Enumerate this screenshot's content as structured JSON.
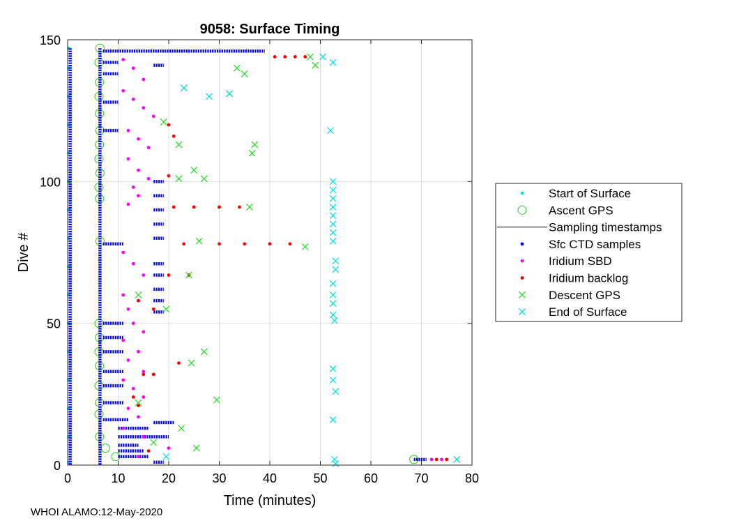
{
  "chart_data": {
    "type": "scatter",
    "title": "9058: Surface Timing",
    "xlabel": "Time (minutes)",
    "ylabel": "Dive #",
    "xlim": [
      0,
      80
    ],
    "ylim": [
      0,
      150
    ],
    "xticks": [
      "0",
      "10",
      "20",
      "30",
      "40",
      "50",
      "60",
      "70",
      "80"
    ],
    "yticks": [
      "0",
      "50",
      "100",
      "150"
    ],
    "grid": true,
    "legend_position": "right",
    "legend": [
      {
        "label": "Start of Surface",
        "marker": "dot",
        "color": "#00e5e5"
      },
      {
        "label": "Ascent GPS",
        "marker": "circle",
        "color": "#22cc22"
      },
      {
        "label": "Sampling timestamps",
        "marker": "line",
        "color": "#000000"
      },
      {
        "label": "Sfc CTD samples",
        "marker": "dot",
        "color": "#0000ff"
      },
      {
        "label": "Iridium SBD",
        "marker": "dot",
        "color": "#ff00ff"
      },
      {
        "label": "Iridium backlog",
        "marker": "dot",
        "color": "#ff0000"
      },
      {
        "label": "Descent GPS",
        "marker": "x",
        "color": "#22dd22"
      },
      {
        "label": "End of Surface",
        "marker": "x",
        "color": "#00e0e0"
      }
    ],
    "series": [
      {
        "name": "Start of Surface",
        "points": [
          [
            0.2,
            1
          ],
          [
            0.2,
            10
          ],
          [
            0.2,
            20
          ],
          [
            0.2,
            30
          ],
          [
            0.2,
            40
          ],
          [
            0.2,
            50
          ],
          [
            0.2,
            60
          ],
          [
            0.2,
            70
          ],
          [
            0.2,
            80
          ],
          [
            0.2,
            90
          ],
          [
            0.2,
            100
          ],
          [
            0.2,
            110
          ],
          [
            0.2,
            120
          ],
          [
            0.2,
            130
          ],
          [
            0.2,
            140
          ],
          [
            0.2,
            147
          ]
        ]
      },
      {
        "name": "Ascent GPS",
        "points": [
          [
            6.4,
            147
          ],
          [
            6.2,
            142
          ],
          [
            6.3,
            135
          ],
          [
            6.2,
            130
          ],
          [
            6.3,
            124
          ],
          [
            6.4,
            118
          ],
          [
            6.3,
            113
          ],
          [
            6.2,
            108
          ],
          [
            6.4,
            103
          ],
          [
            6.2,
            98
          ],
          [
            6.3,
            94
          ],
          [
            6.4,
            79
          ],
          [
            6.2,
            50
          ],
          [
            6.3,
            45
          ],
          [
            6.2,
            40
          ],
          [
            6.3,
            35
          ],
          [
            6.2,
            28
          ],
          [
            6.3,
            22
          ],
          [
            6.2,
            18
          ],
          [
            6.3,
            10
          ],
          [
            7.5,
            6
          ],
          [
            9.5,
            3
          ],
          [
            68.5,
            2
          ]
        ]
      },
      {
        "name": "Sfc CTD samples",
        "segments": [
          [
            0.5,
            147,
            0.5,
            0
          ],
          [
            6.4,
            147,
            6.4,
            0
          ],
          [
            7,
            146,
            39,
            146
          ],
          [
            7,
            142,
            10,
            142
          ],
          [
            17,
            141,
            19,
            141
          ],
          [
            7,
            138,
            10,
            138
          ],
          [
            7,
            128,
            10,
            128
          ],
          [
            7,
            118,
            10,
            118
          ],
          [
            17,
            100,
            19,
            100
          ],
          [
            17,
            95,
            19,
            95
          ],
          [
            17,
            90,
            19,
            90
          ],
          [
            17,
            85,
            19,
            85
          ],
          [
            17,
            80,
            19,
            80
          ],
          [
            7,
            78,
            11,
            78
          ],
          [
            17,
            71,
            19,
            71
          ],
          [
            17,
            67,
            19,
            67
          ],
          [
            17,
            62,
            19,
            62
          ],
          [
            17,
            58,
            19,
            58
          ],
          [
            17,
            54,
            19,
            54
          ],
          [
            7,
            50,
            11,
            50
          ],
          [
            7,
            45,
            11,
            45
          ],
          [
            7,
            40,
            11,
            40
          ],
          [
            7,
            33,
            11,
            33
          ],
          [
            7,
            28,
            11,
            28
          ],
          [
            7,
            22,
            11,
            22
          ],
          [
            7,
            16,
            12,
            16
          ],
          [
            17,
            15,
            21,
            15
          ],
          [
            10,
            13,
            16,
            13
          ],
          [
            10,
            10,
            20,
            10
          ],
          [
            10,
            7,
            14,
            7
          ],
          [
            10,
            5,
            15,
            5
          ],
          [
            10,
            3,
            16,
            3
          ],
          [
            17,
            1,
            19,
            1
          ],
          [
            68.5,
            2,
            71,
            2
          ]
        ]
      },
      {
        "name": "Iridium SBD",
        "points": [
          [
            11,
            143
          ],
          [
            13,
            140
          ],
          [
            15,
            136
          ],
          [
            11,
            132
          ],
          [
            13,
            129
          ],
          [
            15,
            126
          ],
          [
            17,
            123
          ],
          [
            12,
            118
          ],
          [
            14,
            115
          ],
          [
            16,
            112
          ],
          [
            12,
            108
          ],
          [
            14,
            104
          ],
          [
            16,
            101
          ],
          [
            13,
            98
          ],
          [
            14,
            95
          ],
          [
            12,
            92
          ],
          [
            11,
            75
          ],
          [
            13,
            71
          ],
          [
            15,
            67
          ],
          [
            11,
            60
          ],
          [
            14,
            58
          ],
          [
            12,
            55
          ],
          [
            13,
            50
          ],
          [
            15,
            47
          ],
          [
            11,
            44
          ],
          [
            14,
            40
          ],
          [
            12,
            37
          ],
          [
            15,
            33
          ],
          [
            11,
            30
          ],
          [
            13,
            27
          ],
          [
            15,
            24
          ],
          [
            12,
            20
          ],
          [
            14,
            17
          ],
          [
            11,
            13
          ],
          [
            15,
            10
          ],
          [
            20,
            6
          ],
          [
            14,
            3
          ],
          [
            72,
            2
          ],
          [
            74,
            2
          ]
        ]
      },
      {
        "name": "Iridium backlog",
        "points": [
          [
            41,
            144
          ],
          [
            43,
            144
          ],
          [
            45,
            144
          ],
          [
            47,
            144
          ],
          [
            20,
            120
          ],
          [
            21,
            116
          ],
          [
            20,
            102
          ],
          [
            21,
            91
          ],
          [
            25,
            91
          ],
          [
            30,
            91
          ],
          [
            34,
            91
          ],
          [
            23,
            78
          ],
          [
            30,
            78
          ],
          [
            35,
            78
          ],
          [
            40,
            78
          ],
          [
            44,
            78
          ],
          [
            20,
            67
          ],
          [
            24,
            67
          ],
          [
            14,
            58
          ],
          [
            17,
            55
          ],
          [
            22,
            36
          ],
          [
            15,
            32
          ],
          [
            17,
            32
          ],
          [
            13,
            24
          ],
          [
            14,
            21
          ],
          [
            16,
            5
          ],
          [
            73,
            2
          ],
          [
            75,
            2
          ]
        ]
      },
      {
        "name": "Descent GPS",
        "points": [
          [
            48,
            144
          ],
          [
            49,
            141
          ],
          [
            33.5,
            140
          ],
          [
            35,
            138
          ],
          [
            23,
            133
          ],
          [
            32,
            131
          ],
          [
            19,
            121
          ],
          [
            37,
            113
          ],
          [
            36.5,
            110
          ],
          [
            22,
            113
          ],
          [
            25,
            104
          ],
          [
            27,
            101
          ],
          [
            22,
            101
          ],
          [
            36,
            91
          ],
          [
            47,
            77
          ],
          [
            26,
            79
          ],
          [
            24,
            67
          ],
          [
            14,
            60
          ],
          [
            19.5,
            55
          ],
          [
            27,
            40
          ],
          [
            24.5,
            36
          ],
          [
            29.5,
            23
          ],
          [
            14,
            22
          ],
          [
            22.5,
            13
          ],
          [
            25.5,
            6
          ],
          [
            17,
            8
          ],
          [
            77,
            2
          ]
        ]
      },
      {
        "name": "End of Surface",
        "points": [
          [
            50.5,
            144
          ],
          [
            52.5,
            142
          ],
          [
            23,
            133
          ],
          [
            28,
            130
          ],
          [
            32,
            131
          ],
          [
            52,
            118
          ],
          [
            52.5,
            100
          ],
          [
            52.5,
            97
          ],
          [
            52.5,
            94
          ],
          [
            52.5,
            91
          ],
          [
            52.5,
            88
          ],
          [
            52.5,
            85
          ],
          [
            52.5,
            82
          ],
          [
            52.5,
            79
          ],
          [
            53,
            72
          ],
          [
            53,
            69
          ],
          [
            52.5,
            64
          ],
          [
            52.5,
            60
          ],
          [
            52.5,
            57
          ],
          [
            52.5,
            53
          ],
          [
            52.8,
            51
          ],
          [
            52.5,
            34
          ],
          [
            52.5,
            30
          ],
          [
            53,
            26
          ],
          [
            52.5,
            16
          ],
          [
            52.8,
            2
          ],
          [
            53,
            0.5
          ],
          [
            19.5,
            3
          ],
          [
            77,
            2
          ]
        ]
      }
    ]
  },
  "footer": {
    "text": "WHOI ALAMO:12-May-2020"
  }
}
